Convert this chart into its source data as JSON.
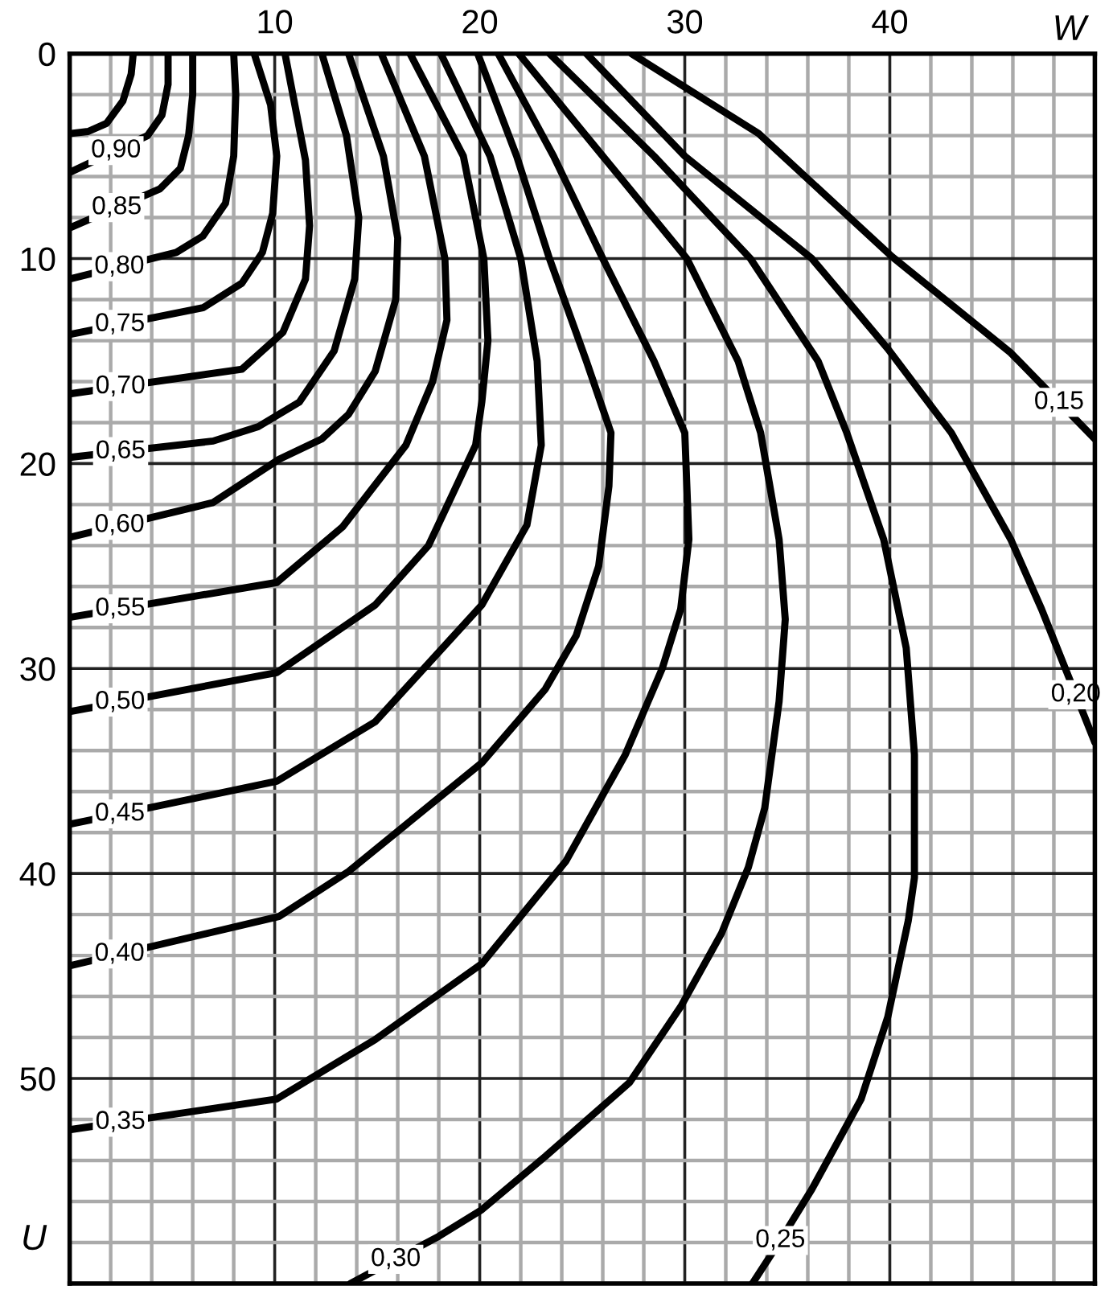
{
  "chart_data": {
    "type": "line",
    "xlabel": "W",
    "ylabel": "U",
    "xlim": [
      0,
      50
    ],
    "ylim": [
      60,
      0
    ],
    "xticks": [
      {
        "value": 0,
        "label": null
      },
      {
        "value": 2,
        "label": null
      },
      {
        "value": 4,
        "label": null
      },
      {
        "value": 6,
        "label": null
      },
      {
        "value": 8,
        "label": null
      },
      10,
      {
        "value": 12,
        "label": null
      },
      {
        "value": 14,
        "label": null
      },
      {
        "value": 16,
        "label": null
      },
      {
        "value": 18,
        "label": null
      },
      20,
      {
        "value": 22,
        "label": null
      },
      {
        "value": 24,
        "label": null
      },
      {
        "value": 26,
        "label": null
      },
      {
        "value": 28,
        "label": null
      },
      30,
      {
        "value": 32,
        "label": null
      },
      {
        "value": 34,
        "label": null
      },
      {
        "value": 36,
        "label": null
      },
      {
        "value": 38,
        "label": null
      },
      40,
      {
        "value": 42,
        "label": null
      },
      {
        "value": 44,
        "label": null
      },
      {
        "value": 46,
        "label": null
      },
      {
        "value": 48,
        "label": null
      },
      {
        "value": 50,
        "label": null
      }
    ],
    "yticks": [
      0,
      {
        "value": 2,
        "label": null
      },
      {
        "value": 4,
        "label": null
      },
      {
        "value": 6,
        "label": null
      },
      {
        "value": 8,
        "label": null
      },
      10,
      {
        "value": 12,
        "label": null
      },
      {
        "value": 14,
        "label": null
      },
      {
        "value": 16,
        "label": null
      },
      {
        "value": 18,
        "label": null
      },
      20,
      {
        "value": 22,
        "label": null
      },
      {
        "value": 24,
        "label": null
      },
      {
        "value": 26,
        "label": null
      },
      {
        "value": 28,
        "label": null
      },
      30,
      {
        "value": 32,
        "label": null
      },
      {
        "value": 34,
        "label": null
      },
      {
        "value": 36,
        "label": null
      },
      {
        "value": 38,
        "label": null
      },
      40,
      {
        "value": 42,
        "label": null
      },
      {
        "value": 44,
        "label": null
      },
      {
        "value": 46,
        "label": null
      },
      {
        "value": 48,
        "label": null
      },
      50,
      {
        "value": 52,
        "label": null
      },
      {
        "value": 54,
        "label": null
      },
      {
        "value": 56,
        "label": null
      },
      {
        "value": 58,
        "label": null
      },
      {
        "value": 60,
        "label": null
      }
    ],
    "grid": true,
    "marker": "none",
    "line_style": "solid",
    "series": [
      {
        "color": "#000000",
        "x": [
          3.1,
          3.0,
          2.6,
          1.8,
          0.9,
          0
        ],
        "values": [
          0,
          1,
          2.3,
          3.4,
          3.8,
          3.9
        ]
      },
      {
        "name": "0,90",
        "color": "#000000",
        "x": [
          4.8,
          4.8,
          4.5,
          3.8,
          0
        ],
        "values": [
          0,
          1.5,
          3.0,
          4.0,
          5.8
        ]
      },
      {
        "name": "0,85",
        "color": "#000000",
        "x": [
          6.0,
          6.0,
          5.8,
          5.4,
          4.4,
          0
        ],
        "values": [
          0,
          2,
          4,
          5.6,
          6.6,
          8.5
        ]
      },
      {
        "name": "0,80",
        "color": "#000000",
        "x": [
          8.0,
          8.1,
          8.0,
          7.6,
          6.5,
          5.2,
          0
        ],
        "values": [
          0,
          2,
          5,
          7.3,
          8.9,
          9.7,
          11.0
        ]
      },
      {
        "name": "0,75",
        "color": "#000000",
        "x": [
          9.0,
          9.8,
          10.1,
          9.9,
          9.4,
          8.4,
          6.5,
          0
        ],
        "values": [
          0,
          2.5,
          5,
          7.8,
          9.7,
          11.2,
          12.4,
          13.7
        ]
      },
      {
        "name": "0,70",
        "color": "#000000",
        "x": [
          10.5,
          11.5,
          11.7,
          11.5,
          10.4,
          8.4,
          0
        ],
        "values": [
          0,
          5.2,
          8.4,
          11,
          13.6,
          15.4,
          16.6
        ]
      },
      {
        "name": "0,65",
        "color": "#000000",
        "x": [
          12.3,
          13.5,
          14.1,
          13.9,
          12.9,
          11.2,
          9.2,
          7.0,
          0
        ],
        "values": [
          0,
          4,
          8,
          11,
          14.5,
          17,
          18.2,
          18.9,
          19.7
        ]
      },
      {
        "name": "0,60",
        "color": "#000000",
        "x": [
          13.6,
          15.3,
          16.0,
          15.9,
          14.9,
          13.6,
          12.3,
          10.2,
          7.0,
          0
        ],
        "values": [
          0,
          5,
          9,
          12,
          15.5,
          17.6,
          18.8,
          19.8,
          21.9,
          23.6
        ]
      },
      {
        "name": "0,55",
        "color": "#000000",
        "x": [
          15.2,
          17.3,
          18.3,
          18.4,
          17.7,
          16.4,
          13.3,
          10.1,
          0
        ],
        "values": [
          0,
          5,
          10,
          13,
          16,
          19.1,
          23.1,
          25.8,
          27.5
        ]
      },
      {
        "name": "0,50",
        "color": "#000000",
        "x": [
          16.6,
          19.2,
          20.2,
          20.4,
          20.1,
          19.8,
          17.5,
          14.9,
          10.1,
          0
        ],
        "values": [
          0,
          5,
          10,
          14,
          17,
          19.1,
          24,
          26.9,
          30.2,
          32.1
        ]
      },
      {
        "name": "0,45",
        "color": "#000000",
        "x": [
          18.1,
          20.5,
          22.0,
          22.8,
          23.0,
          22.3,
          20.1,
          14.9,
          10.1,
          0
        ],
        "values": [
          0,
          5,
          10,
          15,
          19.1,
          23,
          26.9,
          32.6,
          35.5,
          37.6
        ]
      },
      {
        "name": "0,40",
        "color": "#000000",
        "x": [
          19.9,
          21.8,
          23.4,
          25.2,
          26.4,
          26.3,
          25.8,
          24.7,
          23.2,
          20.1,
          13.6,
          10.2,
          0
        ],
        "values": [
          0,
          5,
          10,
          15,
          18.5,
          21.1,
          25,
          28.4,
          31,
          34.6,
          39.9,
          42.1,
          44.5
        ]
      },
      {
        "name": "0,35",
        "color": "#000000",
        "x": [
          20.9,
          23.6,
          26.0,
          28.5,
          30.0,
          30.2,
          29.8,
          28.9,
          27.1,
          24.2,
          20.1,
          14.9,
          10.1,
          0
        ],
        "values": [
          0,
          5,
          10,
          15,
          18.5,
          23.7,
          27.1,
          30,
          34.2,
          39.4,
          44.4,
          48.1,
          51,
          52.5
        ]
      },
      {
        "name": "0,30",
        "color": "#000000",
        "x": [
          21.9,
          26.0,
          30.1,
          32.6,
          33.7,
          34.6,
          34.9,
          34.6,
          33.9,
          33.1,
          31.8,
          29.8,
          27.3,
          23.2,
          20.1,
          18.0,
          13.7
        ],
        "values": [
          0,
          5,
          10,
          15,
          18.5,
          23.7,
          27.6,
          31.6,
          36.8,
          39.7,
          42.9,
          46.5,
          50.2,
          53.8,
          56.4,
          57.7,
          60
        ]
      },
      {
        "name": "0,25",
        "color": "#000000",
        "x": [
          23.4,
          28.5,
          33.2,
          36.5,
          37.9,
          39.7,
          40.8,
          41.2,
          41.2,
          40.9,
          39.9,
          38.6,
          36.2,
          34.6,
          33.3
        ],
        "values": [
          0,
          5,
          10,
          15,
          18.5,
          23.7,
          29,
          34.2,
          40.2,
          42.3,
          47,
          51,
          55.4,
          58,
          60
        ]
      },
      {
        "name": "0,20",
        "color": "#000000",
        "x": [
          25.2,
          30.0,
          36.2,
          39.9,
          43.0,
          45.9,
          47.4,
          50
        ],
        "values": [
          0,
          5,
          10,
          14.4,
          18.5,
          23.7,
          27.1,
          33.6
        ]
      },
      {
        "name": "0,15",
        "color": "#000000",
        "x": [
          27.4,
          33.6,
          40.1,
          45.9,
          50
        ],
        "values": [
          0,
          3.9,
          9.9,
          14.6,
          18.8
        ]
      }
    ]
  }
}
